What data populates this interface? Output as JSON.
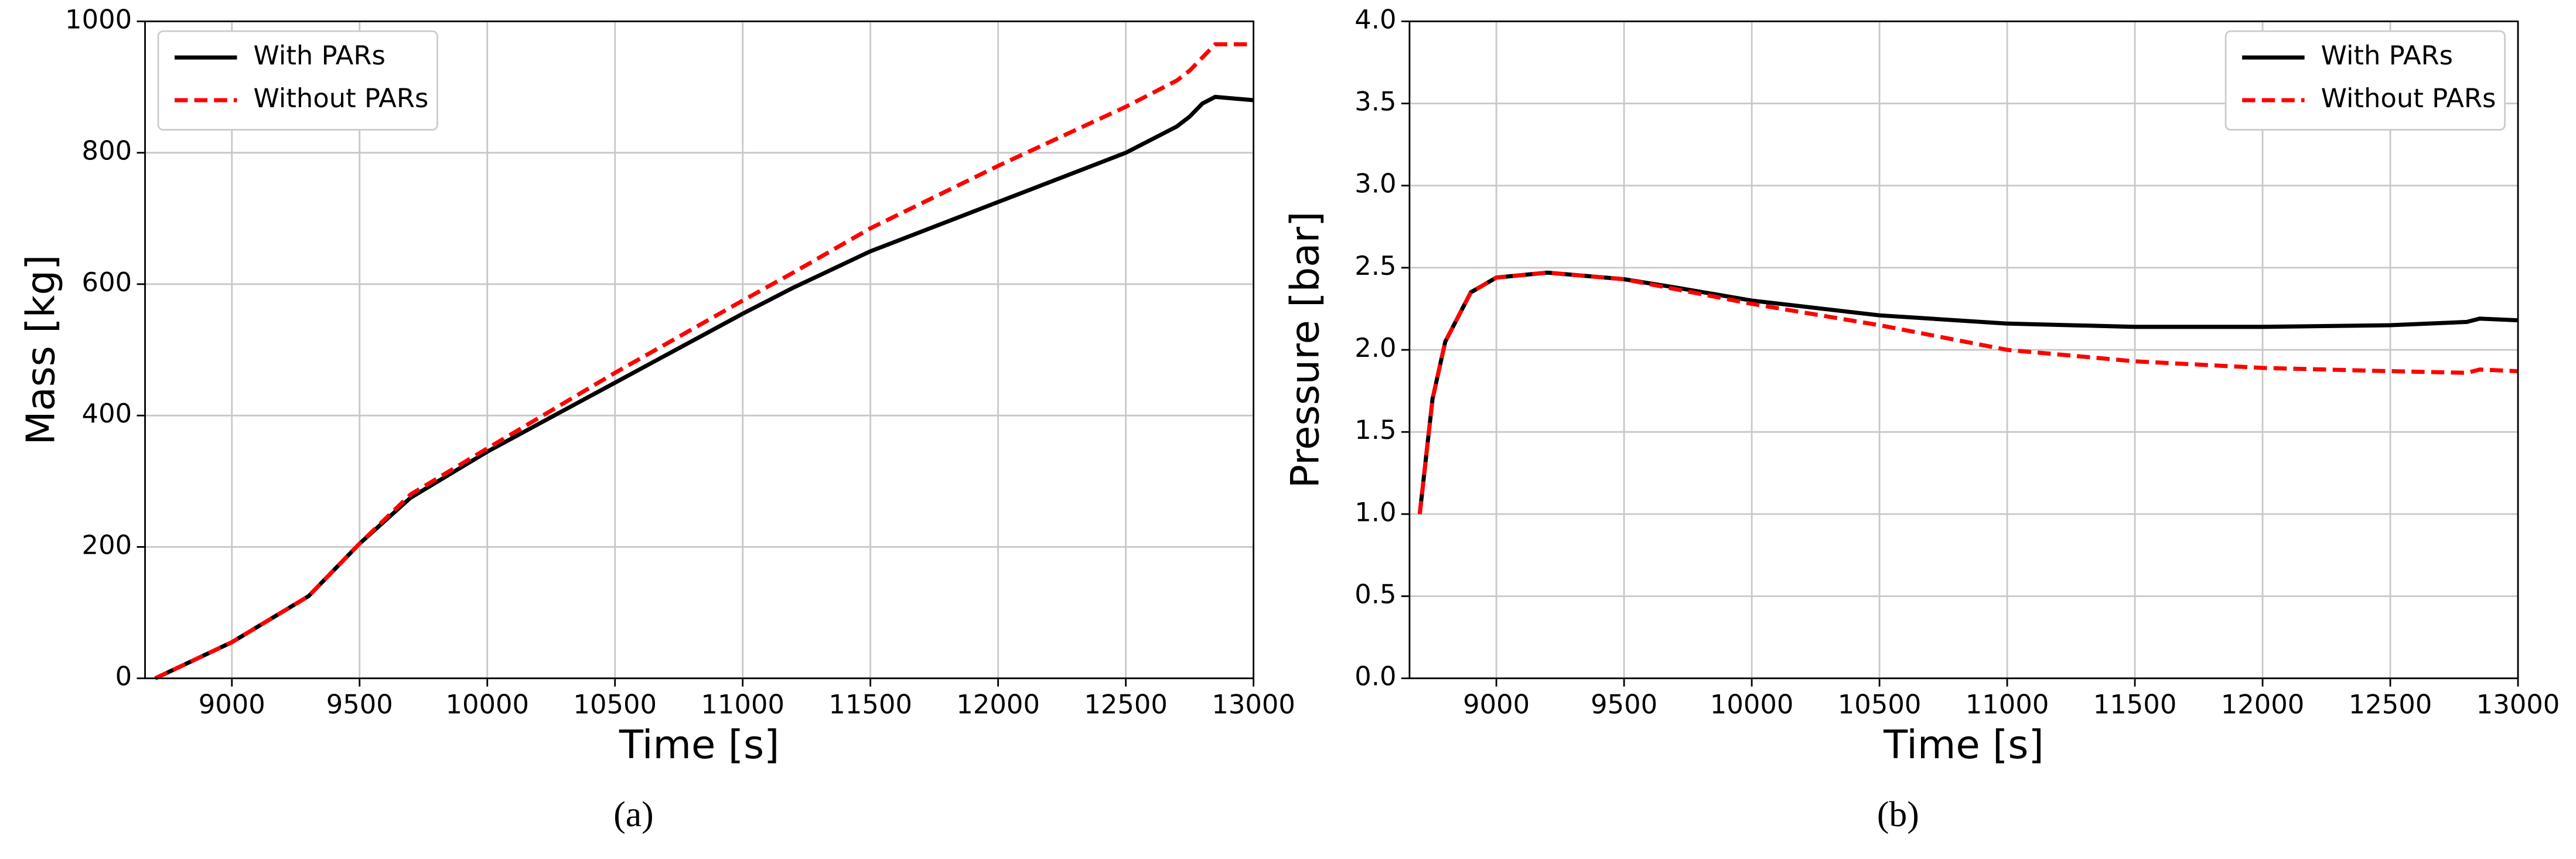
{
  "chart_data": [
    {
      "type": "line",
      "caption": "(a)",
      "xlabel": "Time [s]",
      "ylabel": "Mass [kg]",
      "xlim": [
        8660,
        13000
      ],
      "xticks": [
        9000,
        9500,
        10000,
        10500,
        11000,
        11500,
        12000,
        12500,
        13000
      ],
      "ylim": [
        0,
        1000
      ],
      "yticks": [
        0,
        200,
        400,
        600,
        800,
        1000
      ],
      "grid": true,
      "legend": "upper left",
      "x": [
        8700,
        9000,
        9300,
        9500,
        9700,
        10000,
        10500,
        11000,
        11200,
        11500,
        12000,
        12500,
        12700,
        12750,
        12800,
        12850,
        13000
      ],
      "series": [
        {
          "name": "With PARs",
          "color": "#000000",
          "linestyle": "solid",
          "values": [
            0,
            55,
            125,
            205,
            275,
            345,
            450,
            555,
            595,
            650,
            725,
            800,
            840,
            855,
            875,
            885,
            880
          ]
        },
        {
          "name": "Without PARs",
          "color": "#ff0000",
          "linestyle": "dashed",
          "values": [
            0,
            55,
            125,
            205,
            280,
            350,
            465,
            575,
            618,
            685,
            780,
            870,
            910,
            925,
            945,
            965,
            965
          ]
        }
      ]
    },
    {
      "type": "line",
      "caption": "(b)",
      "xlabel": "Time [s]",
      "ylabel": "Pressure [bar]",
      "xlim": [
        8660,
        13000
      ],
      "xticks": [
        9000,
        9500,
        10000,
        10500,
        11000,
        11500,
        12000,
        12500,
        13000
      ],
      "ylim": [
        0,
        4
      ],
      "yticks": [
        {
          "value": 0,
          "label": "0.0"
        },
        0.5,
        {
          "value": 1,
          "label": "1.0"
        },
        1.5,
        {
          "value": 2,
          "label": "2.0"
        },
        2.5,
        {
          "value": 3,
          "label": "3.0"
        },
        3.5,
        {
          "value": 4,
          "label": "4.0"
        }
      ],
      "grid": true,
      "legend": "upper right",
      "x": [
        8700,
        8750,
        8800,
        8900,
        9000,
        9200,
        9500,
        9700,
        10000,
        10500,
        11000,
        11500,
        12000,
        12500,
        12800,
        12850,
        13000
      ],
      "series": [
        {
          "name": "With PARs",
          "color": "#000000",
          "linestyle": "solid",
          "values": [
            1.0,
            1.7,
            2.05,
            2.35,
            2.44,
            2.47,
            2.43,
            2.38,
            2.3,
            2.21,
            2.16,
            2.14,
            2.14,
            2.15,
            2.17,
            2.19,
            2.18
          ]
        },
        {
          "name": "Without PARs",
          "color": "#ff0000",
          "linestyle": "dashed",
          "values": [
            1.0,
            1.7,
            2.05,
            2.35,
            2.44,
            2.47,
            2.43,
            2.37,
            2.28,
            2.15,
            2.0,
            1.93,
            1.89,
            1.87,
            1.86,
            1.88,
            1.87
          ]
        }
      ]
    }
  ]
}
